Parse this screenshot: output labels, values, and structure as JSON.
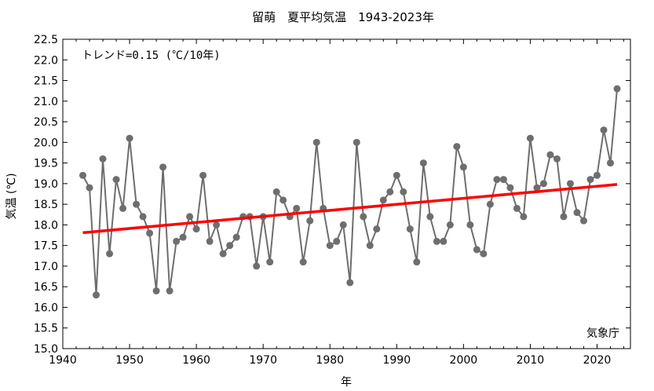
{
  "chart_data": {
    "type": "line",
    "title": "留萌　夏平均気温　1943-2023年",
    "xlabel": "年",
    "ylabel": "気温 (℃)",
    "xlim": [
      1940,
      2025
    ],
    "ylim": [
      15.0,
      22.5
    ],
    "xticks": [
      1940,
      1950,
      1960,
      1970,
      1980,
      1990,
      2000,
      2010,
      2020
    ],
    "yticks": [
      15.0,
      15.5,
      16.0,
      16.5,
      17.0,
      17.5,
      18.0,
      18.5,
      19.0,
      19.5,
      20.0,
      20.5,
      21.0,
      21.5,
      22.0,
      22.5
    ],
    "grid": false,
    "trend_annotation": "トレンド=0.15 (℃/10年)",
    "credit": "気象庁",
    "colors": {
      "series": "#6e6e6e",
      "trend": "#ff0000"
    },
    "series": [
      {
        "x": [
          1943,
          1944,
          1945,
          1946,
          1947,
          1948,
          1949,
          1950,
          1951,
          1952,
          1953,
          1954,
          1955,
          1956,
          1957,
          1958,
          1959,
          1960,
          1961,
          1962,
          1963,
          1964,
          1965,
          1966,
          1967,
          1968,
          1969,
          1970,
          1971,
          1972,
          1973,
          1974,
          1975,
          1976,
          1977,
          1978,
          1979,
          1980,
          1981,
          1982,
          1983,
          1984,
          1985,
          1986,
          1987,
          1988,
          1989,
          1990,
          1991,
          1992,
          1993,
          1994,
          1995,
          1996,
          1997,
          1998,
          1999,
          2000,
          2001,
          2002,
          2003,
          2004,
          2005,
          2006,
          2007,
          2008,
          2009,
          2010,
          2011,
          2012,
          2013,
          2014,
          2015,
          2016,
          2017,
          2018,
          2019,
          2020,
          2021,
          2022,
          2023
        ],
        "values": [
          19.2,
          18.9,
          16.3,
          19.6,
          17.3,
          19.1,
          18.4,
          20.1,
          18.5,
          18.2,
          17.8,
          16.4,
          19.4,
          16.4,
          17.6,
          17.7,
          18.2,
          17.9,
          19.2,
          17.6,
          18.0,
          17.3,
          17.5,
          17.7,
          18.2,
          18.2,
          17.0,
          18.2,
          17.1,
          18.8,
          18.6,
          18.2,
          18.4,
          17.1,
          18.1,
          20.0,
          18.4,
          17.5,
          17.6,
          18.0,
          16.6,
          20.0,
          18.2,
          17.5,
          17.9,
          18.6,
          18.8,
          19.2,
          18.8,
          17.9,
          17.1,
          19.5,
          18.2,
          17.6,
          17.6,
          18.0,
          19.9,
          19.4,
          18.0,
          17.4,
          17.3,
          18.5,
          19.1,
          19.1,
          18.9,
          18.4,
          18.2,
          20.1,
          18.9,
          19.0,
          19.7,
          19.6,
          18.2,
          19.0,
          18.3,
          18.1,
          19.1,
          19.2,
          20.3,
          19.5,
          21.3
        ]
      }
    ],
    "trend_line": {
      "x": [
        1943,
        2023
      ],
      "y": [
        17.81,
        18.98
      ]
    }
  }
}
